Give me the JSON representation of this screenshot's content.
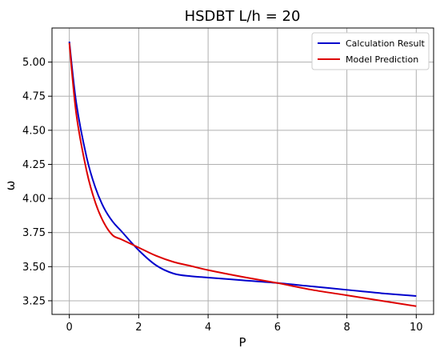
{
  "chart_data": {
    "type": "line",
    "title": "HSDBT L/h = 20",
    "xlabel": "P",
    "ylabel": "ω",
    "xlim": [
      -0.5,
      10.5
    ],
    "ylim": [
      3.15,
      5.25
    ],
    "xticks": [
      0,
      2,
      4,
      6,
      8,
      10
    ],
    "xtick_labels": [
      "0",
      "2",
      "4",
      "6",
      "8",
      "10"
    ],
    "yticks": [
      3.25,
      3.5,
      3.75,
      4.0,
      4.25,
      4.5,
      4.75,
      5.0
    ],
    "ytick_labels": [
      "3.25",
      "3.50",
      "3.75",
      "4.00",
      "4.25",
      "4.50",
      "4.75",
      "5.00"
    ],
    "grid": true,
    "legend_position": "top-right",
    "series": [
      {
        "name": "Calculation Result",
        "color": "#0000cc",
        "x": [
          0,
          0.2,
          0.5,
          0.75,
          1.0,
          1.25,
          1.5,
          2.0,
          2.5,
          3.0,
          3.5,
          4.0,
          5.0,
          6.0,
          7.0,
          8.0,
          9.0,
          10.0
        ],
        "y": [
          5.15,
          4.7,
          4.3,
          4.08,
          3.93,
          3.83,
          3.76,
          3.62,
          3.51,
          3.45,
          3.43,
          3.42,
          3.4,
          3.38,
          3.355,
          3.33,
          3.305,
          3.285
        ]
      },
      {
        "name": "Model Prediction",
        "color": "#dd0000",
        "x": [
          0,
          0.2,
          0.5,
          0.75,
          1.0,
          1.25,
          1.5,
          2.0,
          2.5,
          3.0,
          3.5,
          4.0,
          5.0,
          6.0,
          7.0,
          8.0,
          9.0,
          10.0
        ],
        "y": [
          5.14,
          4.62,
          4.2,
          3.97,
          3.82,
          3.73,
          3.7,
          3.64,
          3.58,
          3.535,
          3.505,
          3.475,
          3.425,
          3.38,
          3.33,
          3.29,
          3.25,
          3.21
        ]
      }
    ]
  }
}
